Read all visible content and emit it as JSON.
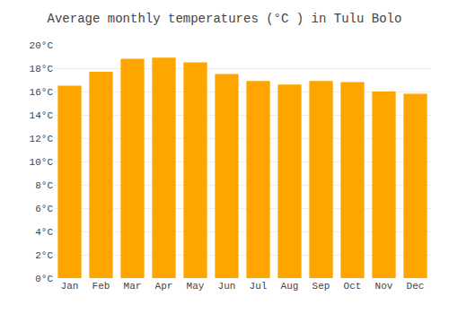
{
  "chart_data": {
    "type": "bar",
    "title": "Average monthly temperatures (°C ) in Tulu Bolo",
    "categories": [
      "Jan",
      "Feb",
      "Mar",
      "Apr",
      "May",
      "Jun",
      "Jul",
      "Aug",
      "Sep",
      "Oct",
      "Nov",
      "Dec"
    ],
    "values": [
      16.5,
      17.7,
      18.8,
      18.9,
      18.5,
      17.5,
      16.9,
      16.6,
      16.9,
      16.8,
      16.0,
      15.8
    ],
    "color": "#FFA500",
    "ylim": [
      0,
      20
    ],
    "yticks": [
      {
        "value": 0,
        "label": "0°C"
      },
      {
        "value": 2,
        "label": "2°C"
      },
      {
        "value": 4,
        "label": "4°C"
      },
      {
        "value": 6,
        "label": "6°C"
      },
      {
        "value": 8,
        "label": "8°C"
      },
      {
        "value": 10,
        "label": "10°C"
      },
      {
        "value": 12,
        "label": "12°C"
      },
      {
        "value": 14,
        "label": "14°C"
      },
      {
        "value": 16,
        "label": "16°C"
      },
      {
        "value": 18,
        "label": "18°C"
      },
      {
        "value": 20,
        "label": "20°C"
      }
    ],
    "grid": true
  }
}
